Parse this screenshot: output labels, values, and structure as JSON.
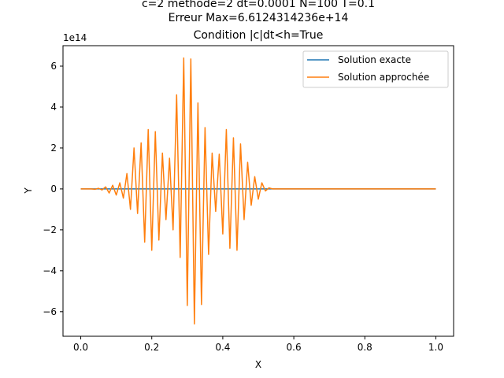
{
  "chart_data": {
    "type": "line",
    "title_lines": [
      "c=2 methode=2 dt=0.0001 N=100 T=0.1",
      "Erreur Max=6.6124314236e+14",
      "Condition |c|dt<h=True"
    ],
    "xlabel": "X",
    "ylabel": "Y",
    "y_offset_label": "1e14",
    "xlim": [
      -0.05,
      1.05
    ],
    "ylim": [
      -7.2,
      7.0
    ],
    "xticks": [
      0.0,
      0.2,
      0.4,
      0.6,
      0.8,
      1.0
    ],
    "xtick_labels": [
      "0.0",
      "0.2",
      "0.4",
      "0.6",
      "0.8",
      "1.0"
    ],
    "yticks": [
      -6,
      -4,
      -2,
      0,
      2,
      4,
      6
    ],
    "ytick_labels": [
      "−6",
      "−4",
      "−2",
      "0",
      "2",
      "4",
      "6"
    ],
    "grid": false,
    "legend_position": "upper right",
    "series": [
      {
        "name": "Solution exacte",
        "color": "#1f77b4",
        "x": [
          0.0,
          1.0
        ],
        "y": [
          0.0,
          0.0
        ]
      },
      {
        "name": "Solution approchée",
        "color": "#ff7f0e",
        "x": [
          0.0,
          0.02,
          0.03,
          0.04,
          0.05,
          0.06,
          0.07,
          0.08,
          0.09,
          0.1,
          0.11,
          0.12,
          0.13,
          0.14,
          0.15,
          0.16,
          0.17,
          0.18,
          0.19,
          0.2,
          0.21,
          0.22,
          0.23,
          0.24,
          0.25,
          0.26,
          0.27,
          0.28,
          0.29,
          0.3,
          0.31,
          0.32,
          0.33,
          0.34,
          0.35,
          0.36,
          0.37,
          0.38,
          0.39,
          0.4,
          0.41,
          0.42,
          0.43,
          0.44,
          0.45,
          0.46,
          0.47,
          0.48,
          0.49,
          0.5,
          0.51,
          0.52,
          0.53,
          0.54,
          0.55,
          0.6,
          0.7,
          0.8,
          0.9,
          1.0
        ],
        "y": [
          0.0,
          0.0,
          0.0,
          -0.02,
          0.03,
          -0.05,
          0.1,
          -0.2,
          0.18,
          -0.3,
          0.3,
          -0.45,
          0.75,
          -1.0,
          2.0,
          -1.2,
          2.25,
          -2.6,
          2.9,
          -3.0,
          2.8,
          -2.5,
          1.75,
          -1.5,
          1.5,
          -2.0,
          4.6,
          -3.35,
          6.4,
          -5.7,
          6.35,
          -6.6,
          4.2,
          -5.65,
          3.0,
          -3.2,
          1.75,
          -1.1,
          1.7,
          -2.2,
          2.9,
          -2.9,
          2.5,
          -3.0,
          2.2,
          -1.5,
          1.3,
          -0.8,
          0.6,
          -0.5,
          0.3,
          -0.1,
          0.05,
          0.0,
          0.0,
          0.0,
          0.0,
          0.0,
          0.0,
          0.0
        ]
      }
    ]
  }
}
